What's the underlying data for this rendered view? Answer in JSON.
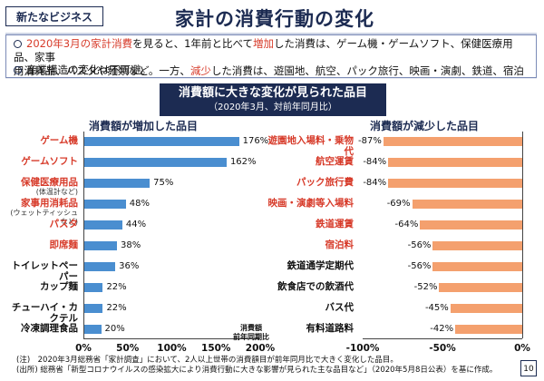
{
  "header": {
    "tag": "新たなビジネス",
    "title": "家計の消費行動の変化"
  },
  "summary": {
    "line1_prefix": "2020年3月の家計消費",
    "line1_rest": "を見ると、1年前と比べて",
    "line1_inc": "増加",
    "line1_after_inc": "した消費は、ゲーム機・ゲームソフト、保健医療用品、家事",
    "line2": "用消耗品、パスタや麺類など。一方、",
    "line2_dec": "減少",
    "line2_after_dec": "した消費は、遊園地、航空、パック旅行、映画・演劇、鉄道、宿泊など。",
    "line3": "産業構造の変化は不可避。"
  },
  "chart": {
    "banner_title": "消費額に大きな変化が見られた品目",
    "banner_subtitle": "（2020年3月、対前年同月比）",
    "left_title": "消費額が増加した品目",
    "right_title": "消費額が減少した品目",
    "left_axis_note": "消費額\n前年同期比"
  },
  "chart_data": [
    {
      "type": "bar",
      "title": "消費額が増加した品目",
      "categories": [
        "ゲーム機",
        "ゲームソフト",
        "保健医療用品",
        "家事用消耗品",
        "パスタ",
        "即席麺",
        "トイレットペーパー",
        "カップ麺",
        "チューハイ・カクテル",
        "冷凍調理食品"
      ],
      "category_notes": [
        "",
        "",
        "(体温計など)",
        "(ウェットティッシュなど)",
        "",
        "",
        "",
        "",
        "",
        ""
      ],
      "values": [
        176,
        162,
        75,
        48,
        44,
        38,
        36,
        22,
        22,
        20
      ],
      "value_labels": [
        "176%",
        "162%",
        "75%",
        "48%",
        "44%",
        "38%",
        "36%",
        "22%",
        "22%",
        "20%"
      ],
      "xlim": [
        0,
        200
      ],
      "xticks": [
        "0%",
        "50%",
        "100%",
        "150%",
        "200%"
      ],
      "ylabel": "",
      "xlabel": "消費額 前年同期比"
    },
    {
      "type": "bar",
      "title": "消費額が減少した品目",
      "categories": [
        "遊園地入場料・乗物代",
        "航空運賃",
        "パック旅行費",
        "映画・演劇等入場料",
        "鉄道運賃",
        "宿泊料",
        "鉄道通学定期代",
        "飲食店での飲酒代",
        "バス代",
        "有料道路料"
      ],
      "values": [
        -87,
        -84,
        -84,
        -69,
        -64,
        -56,
        -56,
        -52,
        -45,
        -42
      ],
      "value_labels": [
        "-87%",
        "-84%",
        "-84%",
        "-69%",
        "-64%",
        "-56%",
        "-56%",
        "-52%",
        "-45%",
        "-42%"
      ],
      "xlim": [
        -100,
        0
      ],
      "xticks": [
        "-100%",
        "-50%",
        "0%"
      ]
    }
  ],
  "notes": {
    "note1": "(注)　2020年3月総務省「家計調査」において、2人以上世帯の消費額目が前年同月比で大きく変化した品目。",
    "note2": "(出所) 総務省「新型コロナウイルスの感染拡大により消費行動に大きな影響が見られた主な品目など」（2020年5月8日公表）を基に作成。"
  },
  "page_number": "10",
  "colors": {
    "increase_bar": "#4a8ed0",
    "decrease_bar": "#f4a06e",
    "accent_red": "#d73b2a",
    "navy": "#1c2b52"
  }
}
